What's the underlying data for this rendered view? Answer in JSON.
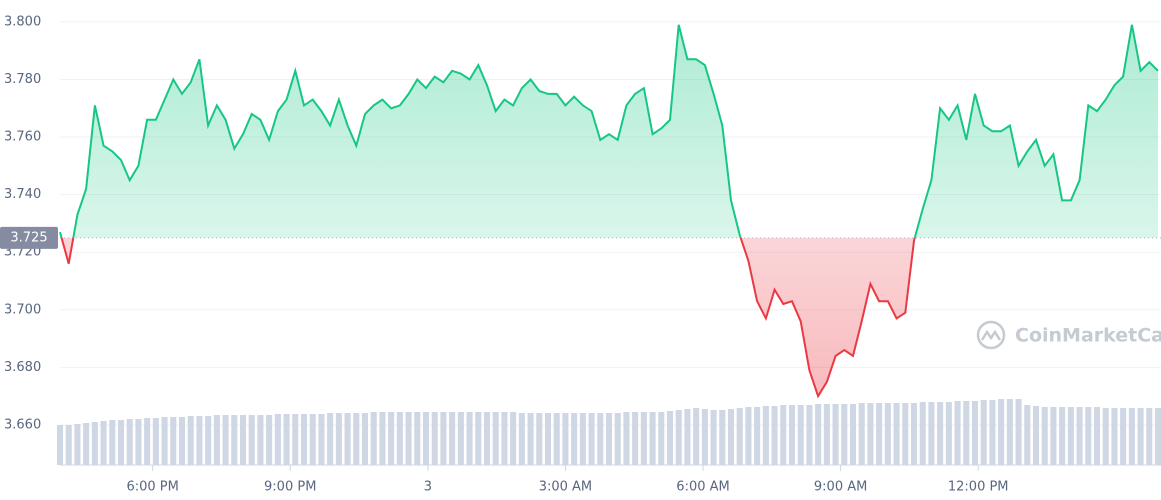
{
  "chart_data": {
    "type": "line",
    "watermark": "CoinMarketCap",
    "xlim": [
      15.98,
      39.92
    ],
    "ylim": [
      3.6461,
      3.8076
    ],
    "yticks": [
      {
        "value": 3.66,
        "label": "3.660"
      },
      {
        "value": 3.68,
        "label": "3.680"
      },
      {
        "value": 3.7,
        "label": "3.700"
      },
      {
        "value": 3.72,
        "label": "3.720"
      },
      {
        "value": 3.74,
        "label": "3.740"
      },
      {
        "value": 3.76,
        "label": "3.760"
      },
      {
        "value": 3.78,
        "label": "3.780"
      },
      {
        "value": 3.8,
        "label": "3.800"
      }
    ],
    "xticks": [
      {
        "value": 18,
        "label": "6:00 PM"
      },
      {
        "value": 21,
        "label": "9:00 PM"
      },
      {
        "value": 24,
        "label": "3"
      },
      {
        "value": 27,
        "label": "3:00 AM"
      },
      {
        "value": 30,
        "label": "6:00 AM"
      },
      {
        "value": 33,
        "label": "9:00 AM"
      },
      {
        "value": 36,
        "label": "12:00 PM"
      }
    ],
    "grid": true,
    "baseline": {
      "value": 3.725,
      "label": "3.725"
    },
    "up_color": "#16c784",
    "down_color": "#ea3943",
    "volume_color": "#cfd6e4",
    "x": [
      15.98,
      16.17,
      16.36,
      16.55,
      16.74,
      16.93,
      17.12,
      17.31,
      17.5,
      17.69,
      17.88,
      18.07,
      18.26,
      18.45,
      18.64,
      18.83,
      19.02,
      19.21,
      19.4,
      19.59,
      19.78,
      19.97,
      20.16,
      20.35,
      20.54,
      20.73,
      20.92,
      21.11,
      21.3,
      21.49,
      21.68,
      21.87,
      22.06,
      22.25,
      22.44,
      22.63,
      22.82,
      23.01,
      23.2,
      23.39,
      23.58,
      23.77,
      23.96,
      24.15,
      24.34,
      24.53,
      24.72,
      24.91,
      25.1,
      25.29,
      25.48,
      25.67,
      25.86,
      26.05,
      26.24,
      26.43,
      26.62,
      26.81,
      27,
      27.19,
      27.38,
      27.57,
      27.76,
      27.95,
      28.14,
      28.33,
      28.52,
      28.71,
      28.9,
      29.09,
      29.28,
      29.47,
      29.66,
      29.85,
      30.04,
      30.23,
      30.42,
      30.61,
      30.8,
      30.99,
      31.18,
      31.37,
      31.56,
      31.75,
      31.94,
      32.13,
      32.32,
      32.51,
      32.7,
      32.89,
      33.08,
      33.27,
      33.46,
      33.65,
      33.84,
      34.03,
      34.22,
      34.41,
      34.6,
      34.79,
      34.98,
      35.17,
      35.36,
      35.55,
      35.74,
      35.93,
      36.12,
      36.31,
      36.5,
      36.69,
      36.88,
      37.07,
      37.26,
      37.45,
      37.64,
      37.83,
      38.02,
      38.21,
      38.4,
      38.59,
      38.78,
      38.97,
      39.16,
      39.35,
      39.54,
      39.73,
      39.92
    ],
    "values": [
      3.727,
      3.716,
      3.733,
      3.742,
      3.771,
      3.757,
      3.755,
      3.752,
      3.745,
      3.75,
      3.766,
      3.766,
      3.773,
      3.78,
      3.775,
      3.779,
      3.787,
      3.764,
      3.771,
      3.766,
      3.756,
      3.761,
      3.768,
      3.766,
      3.759,
      3.769,
      3.773,
      3.783,
      3.771,
      3.773,
      3.769,
      3.764,
      3.773,
      3.764,
      3.757,
      3.768,
      3.771,
      3.773,
      3.77,
      3.771,
      3.775,
      3.78,
      3.777,
      3.781,
      3.779,
      3.783,
      3.782,
      3.78,
      3.785,
      3.778,
      3.769,
      3.773,
      3.771,
      3.777,
      3.78,
      3.776,
      3.775,
      3.775,
      3.771,
      3.774,
      3.771,
      3.769,
      3.759,
      3.761,
      3.759,
      3.771,
      3.775,
      3.777,
      3.761,
      3.763,
      3.766,
      3.799,
      3.787,
      3.787,
      3.785,
      3.775,
      3.764,
      3.738,
      3.726,
      3.717,
      3.703,
      3.697,
      3.707,
      3.702,
      3.703,
      3.696,
      3.679,
      3.67,
      3.675,
      3.684,
      3.686,
      3.684,
      3.696,
      3.709,
      3.703,
      3.703,
      3.697,
      3.699,
      3.724,
      3.735,
      3.745,
      3.77,
      3.766,
      3.771,
      3.759,
      3.775,
      3.764,
      3.762,
      3.762,
      3.764,
      3.75,
      3.755,
      3.759,
      3.75,
      3.754,
      3.738,
      3.738,
      3.745,
      3.771,
      3.769,
      3.773,
      3.778,
      3.781,
      3.799,
      3.783,
      3.786,
      3.783
    ],
    "volume": [
      40,
      40,
      41,
      42,
      43,
      44,
      45,
      45,
      46,
      46,
      47,
      47,
      48,
      48,
      48,
      49,
      49,
      49,
      50,
      50,
      50,
      50,
      50,
      50,
      50,
      51,
      51,
      51,
      51,
      51,
      51,
      52,
      52,
      52,
      52,
      52,
      53,
      53,
      53,
      53,
      53,
      53,
      53,
      53,
      53,
      53,
      53,
      53,
      53,
      53,
      53,
      53,
      53,
      52,
      52,
      52,
      52,
      52,
      52,
      52,
      52,
      52,
      52,
      52,
      52,
      53,
      53,
      53,
      53,
      53,
      54,
      55,
      56,
      57,
      56,
      55,
      55,
      56,
      57,
      58,
      58,
      59,
      59,
      60,
      60,
      60,
      60,
      61,
      61,
      61,
      61,
      61,
      62,
      62,
      62,
      62,
      62,
      62,
      62,
      63,
      63,
      63,
      63,
      64,
      64,
      64,
      65,
      65,
      66,
      66,
      66,
      60,
      59,
      58,
      58,
      58,
      58,
      58,
      58,
      58,
      57,
      57,
      57,
      57,
      57,
      57,
      57
    ]
  }
}
